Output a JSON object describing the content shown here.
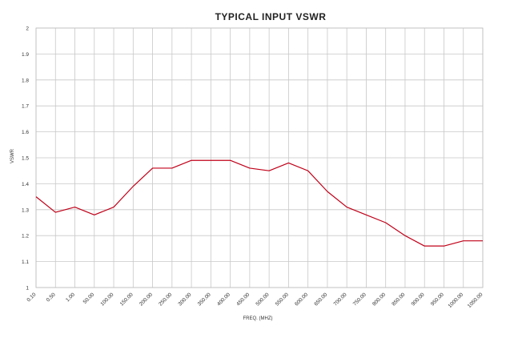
{
  "chart_data": {
    "type": "line",
    "title": "TYPICAL INPUT VSWR",
    "xlabel": "FREQ. (MHZ)",
    "ylabel": "VSWR",
    "categories": [
      "0.10",
      "0.50",
      "1.00",
      "50.00",
      "100.00",
      "150.00",
      "200.00",
      "250.00",
      "300.00",
      "350.00",
      "400.00",
      "450.00",
      "500.00",
      "550.00",
      "600.00",
      "650.00",
      "700.00",
      "750.00",
      "800.00",
      "850.00",
      "900.00",
      "950.00",
      "1000.00",
      "1050.00"
    ],
    "series": [
      {
        "color": "#c00018",
        "values": [
          1.35,
          1.29,
          1.31,
          1.28,
          1.31,
          1.39,
          1.46,
          1.46,
          1.49,
          1.49,
          1.49,
          1.46,
          1.45,
          1.48,
          1.45,
          1.37,
          1.31,
          1.28,
          1.25,
          1.2,
          1.16,
          1.16,
          1.18,
          1.18
        ]
      }
    ],
    "yticks": [
      "1",
      "1.1",
      "1.2",
      "1.3",
      "1.4",
      "1.5",
      "1.6",
      "1.7",
      "1.8",
      "1.9",
      "2"
    ],
    "ylim": [
      1,
      2
    ],
    "grid": true,
    "legend": "none"
  }
}
